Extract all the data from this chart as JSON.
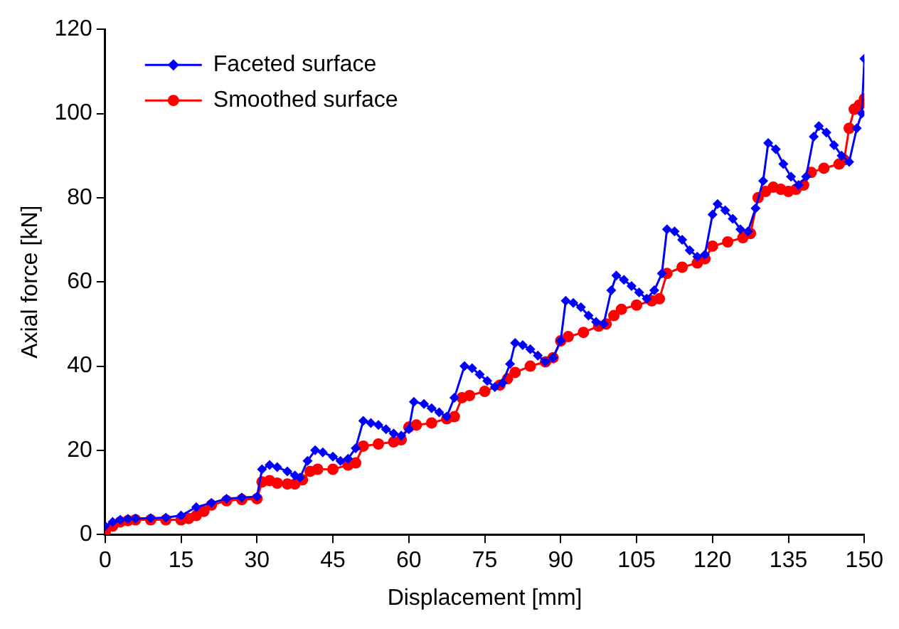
{
  "chart_data": {
    "type": "line",
    "xlabel": "Displacement [mm]",
    "ylabel": "Axial force [kN]",
    "xlim": [
      0,
      150
    ],
    "xticks": [
      0,
      15,
      30,
      45,
      60,
      75,
      90,
      105,
      120,
      135,
      150
    ],
    "ylim": [
      0,
      120
    ],
    "yticks": [
      0,
      20,
      40,
      60,
      80,
      100,
      120
    ],
    "grid": false,
    "legend": "top left",
    "line_style": "solid",
    "series": [
      {
        "name": "Faceted surface",
        "color": "#0000ff",
        "marker": "diamond",
        "x": [
          0,
          1.5,
          3,
          4.5,
          6,
          9,
          12,
          15,
          18,
          21,
          24,
          27,
          30,
          31,
          32.5,
          34,
          36,
          37.5,
          38.5,
          40,
          41.5,
          43,
          45,
          46.5,
          48,
          49.5,
          51,
          52.5,
          54,
          55.5,
          57,
          58.5,
          60,
          61,
          63,
          64.5,
          66,
          67.5,
          69,
          71,
          72.5,
          74,
          75.5,
          77,
          78.5,
          80,
          81,
          82.5,
          84,
          85.5,
          87,
          88.5,
          90,
          91,
          92.5,
          94,
          95.5,
          97,
          98.5,
          100,
          101,
          102.5,
          104,
          105.5,
          107,
          108.5,
          110,
          111,
          112.5,
          114,
          115.5,
          117,
          118.5,
          120,
          121,
          122.5,
          124,
          125.5,
          127,
          128.5,
          130,
          131,
          132.5,
          134,
          135.5,
          137,
          138.5,
          140,
          141,
          142.5,
          144,
          145.5,
          147,
          148.5,
          149.5,
          150
        ],
        "values": [
          2,
          3,
          3.5,
          3.7,
          3.8,
          3.9,
          4,
          4.5,
          6.5,
          7.5,
          8.5,
          8.8,
          9,
          15.5,
          16.5,
          16,
          15,
          14,
          13.5,
          17.5,
          20,
          19.5,
          18.5,
          17.5,
          18,
          20.5,
          27,
          26.5,
          26,
          25,
          24,
          23.5,
          25,
          31.5,
          31,
          30,
          29,
          28,
          32.5,
          40,
          39.5,
          38,
          36.5,
          35,
          36,
          40.5,
          45.5,
          45,
          44,
          42.5,
          41,
          42,
          46,
          55.5,
          55,
          54,
          52,
          50.5,
          50,
          58,
          61.5,
          60.5,
          59,
          57.5,
          56,
          58,
          62,
          72.5,
          72,
          70,
          67.5,
          66,
          66.5,
          76,
          78.5,
          77,
          75,
          72.5,
          72,
          77.5,
          84,
          93,
          91.5,
          88,
          85,
          83,
          85,
          94.5,
          97,
          95.5,
          92.5,
          90,
          88.5,
          96.5,
          100,
          113
        ]
      },
      {
        "name": "Smoothed surface",
        "color": "#ff0000",
        "marker": "circle",
        "x": [
          0,
          1.5,
          3,
          4.5,
          6,
          9,
          12,
          15,
          16.5,
          18,
          19.5,
          21,
          24,
          27,
          30,
          31,
          32.5,
          34,
          36,
          37.5,
          39,
          40.5,
          42,
          45,
          48,
          49.5,
          51,
          54,
          57,
          58.5,
          60,
          61.5,
          64.5,
          67.5,
          69,
          70.5,
          72,
          75,
          78,
          79.5,
          81,
          84,
          87,
          88.5,
          90,
          91.5,
          94.5,
          97.5,
          99,
          100.5,
          102,
          105,
          108,
          109.5,
          111,
          114,
          117,
          118.5,
          120,
          123,
          126,
          127.5,
          129,
          130.5,
          132,
          133.5,
          135,
          136.5,
          138,
          139.5,
          142,
          145,
          146,
          147,
          148,
          149,
          150
        ],
        "values": [
          0.5,
          2,
          3,
          3.3,
          3.5,
          3.5,
          3.5,
          3.5,
          3.8,
          4.5,
          5.5,
          7,
          8,
          8.3,
          8.5,
          12.5,
          12.8,
          12.2,
          12,
          12,
          13,
          15,
          15.5,
          15.5,
          16.5,
          17,
          21,
          21.5,
          22,
          22.5,
          25.5,
          26,
          26.5,
          27.5,
          28,
          32.5,
          33,
          34,
          35.5,
          37,
          38.5,
          40,
          41,
          42,
          46,
          47,
          48,
          49.5,
          50,
          52,
          53.5,
          54.5,
          55.5,
          56,
          62,
          63.5,
          64.5,
          65.5,
          68.5,
          69.5,
          70.5,
          71.5,
          80,
          81.5,
          82.5,
          82,
          81.5,
          82,
          83,
          86,
          87,
          88,
          89,
          96.5,
          101,
          102,
          103.5
        ]
      }
    ]
  }
}
